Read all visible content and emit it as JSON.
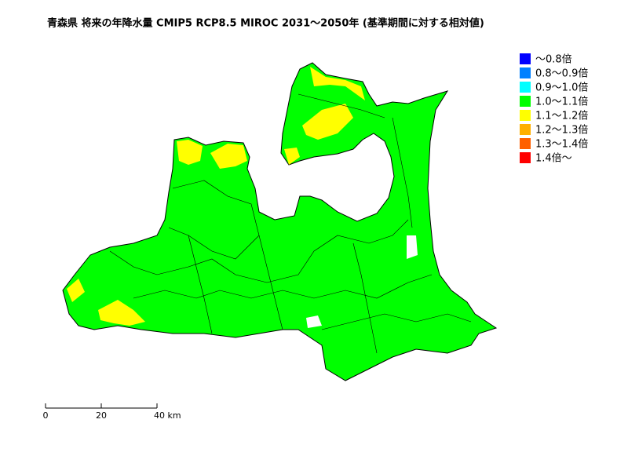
{
  "title": "青森県 将来の年降水量 CMIP5 RCP8.5 MIROC 2031～2050年 (基準期間に対する相対値)",
  "legend": [
    {
      "label": "～0.8倍",
      "color": "#0000ff"
    },
    {
      "label": "0.8～0.9倍",
      "color": "#0080ff"
    },
    {
      "label": "0.9～1.0倍",
      "color": "#00ffff"
    },
    {
      "label": "1.0～1.1倍",
      "color": "#00ff00"
    },
    {
      "label": "1.1～1.2倍",
      "color": "#ffff00"
    },
    {
      "label": "1.2～1.3倍",
      "color": "#ffb000"
    },
    {
      "label": "1.3～1.4倍",
      "color": "#ff6000"
    },
    {
      "label": "1.4倍～",
      "color": "#ff0000"
    }
  ],
  "scale_bar": {
    "ticks": [
      0,
      20,
      {
        "value": 40,
        "label": "40 km"
      }
    ]
  }
}
